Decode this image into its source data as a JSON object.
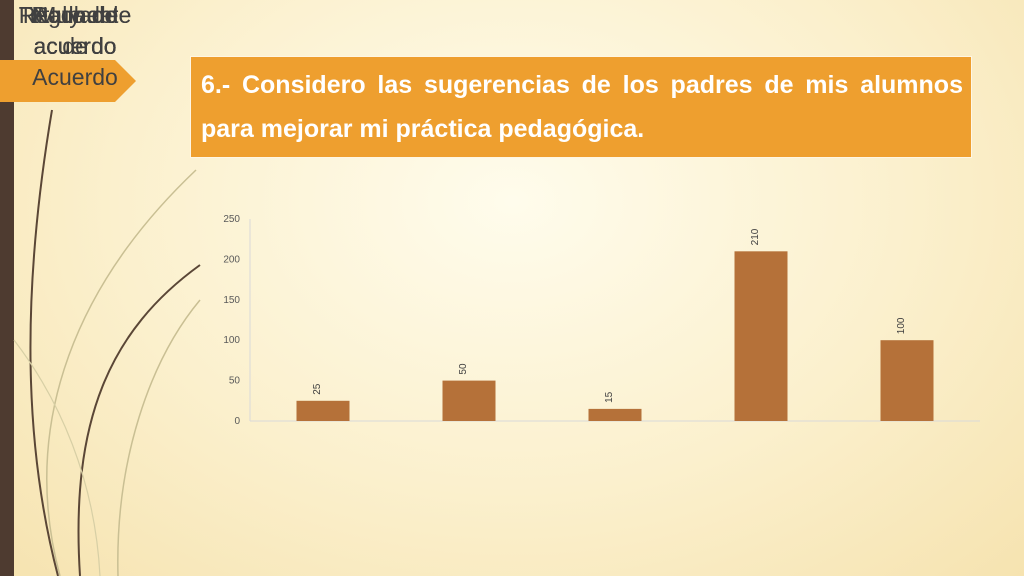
{
  "title": "6.- Considero las sugerencias de los padres de mis alumnos para mejorar mi práctica pedagógica.",
  "colors": {
    "accent": "#ee9f2f",
    "bar": "#b57139",
    "sidebar": "#4e3b30"
  },
  "chart_data": {
    "type": "bar",
    "title": "",
    "xlabel": "",
    "ylabel": "",
    "categories": [
      "Nada de acuerdo",
      "Poco de acuerdo",
      "Regular de acuerdo",
      "Muy de acuerdo",
      "Totalmente de Acuerdo"
    ],
    "category_lines": [
      [
        "Nada de",
        "acuerdo"
      ],
      [
        "Poco de",
        "acuerdo"
      ],
      [
        "Regular de",
        "acuerdo"
      ],
      [
        "Muy de",
        "acuerdo"
      ],
      [
        "Totalmente",
        "de",
        "Acuerdo"
      ]
    ],
    "values": [
      25,
      50,
      15,
      210,
      100
    ],
    "data_labels": [
      "25",
      "50",
      "15",
      "210",
      "100"
    ],
    "yticks": [
      0,
      50,
      100,
      150,
      200,
      250
    ],
    "ylim": [
      0,
      250
    ],
    "grid": false,
    "legend": "none"
  }
}
